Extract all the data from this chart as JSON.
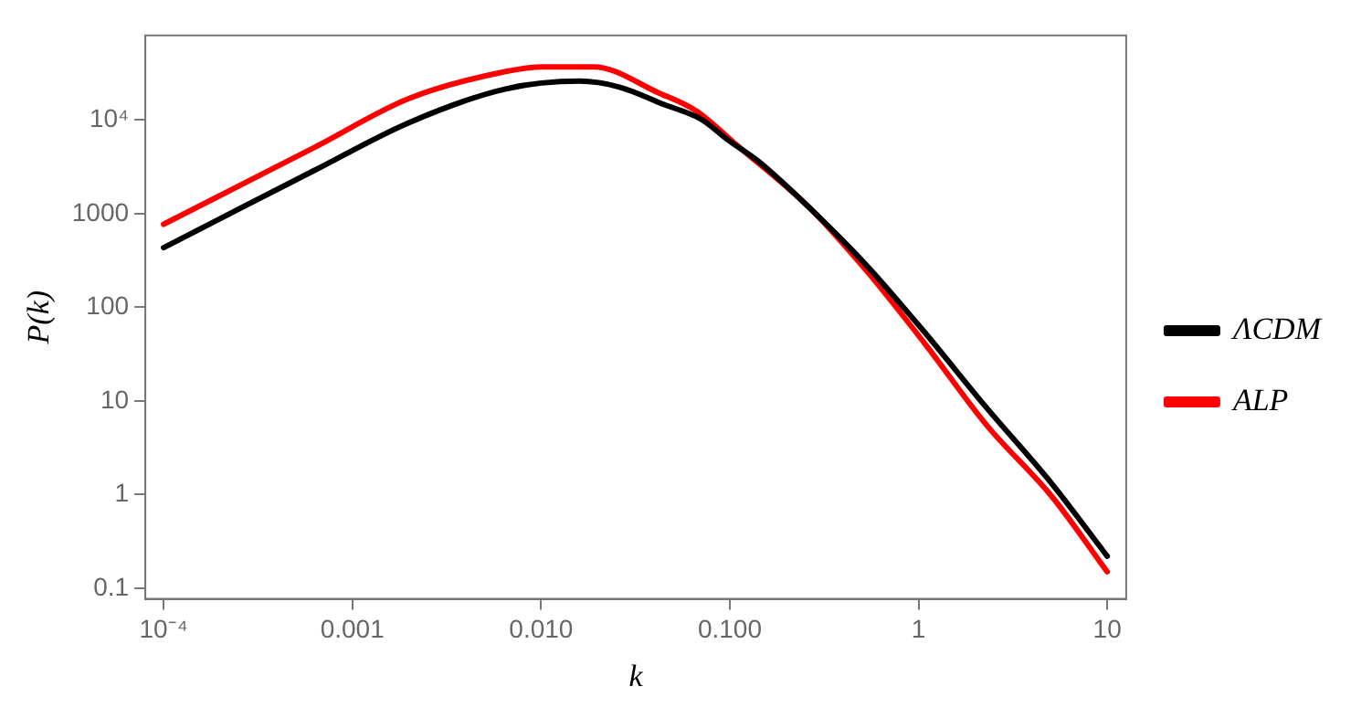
{
  "chart_data": {
    "type": "line",
    "xlabel": "k",
    "ylabel": "P(k)",
    "log": "xy",
    "legend": "right",
    "marker": "none",
    "line_style": "solid",
    "xlim": [
      8e-05,
      12.6
    ],
    "ylim": [
      0.077,
      80000
    ],
    "xticks": [
      {
        "value": 0.0001,
        "label": "10⁻⁴"
      },
      {
        "value": 0.001,
        "label": "0.001"
      },
      {
        "value": 0.01,
        "label": "0.010"
      },
      {
        "value": 0.1,
        "label": "0.100"
      },
      1,
      10
    ],
    "yticks": [
      0.1,
      1,
      10,
      100,
      1000,
      {
        "value": 10000,
        "label": "10⁴"
      }
    ],
    "series": [
      {
        "name": "ΛCDM",
        "color": "#000000",
        "x": [
          0.0001,
          0.00063,
          0.002,
          0.0065,
          0.016,
          0.026,
          0.045,
          0.071,
          0.098,
          0.14,
          0.265,
          0.54,
          1.07,
          2.3,
          5.1,
          10
        ],
        "values": [
          433,
          2900,
          9400,
          21500,
          26000,
          22500,
          14600,
          10100,
          6100,
          3700,
          1150,
          270,
          55,
          8.4,
          1.3,
          0.22
        ]
      },
      {
        "name": "ALP",
        "color": "#ff0000",
        "x": [
          0.0001,
          0.00063,
          0.002,
          0.0065,
          0.0102,
          0.019,
          0.042,
          0.066,
          0.11,
          0.265,
          0.54,
          1.07,
          2.3,
          5.1,
          10
        ],
        "values": [
          770,
          5100,
          17000,
          33000,
          37000,
          37000,
          19500,
          12600,
          5300,
          1150,
          235,
          42,
          5.5,
          0.95,
          0.15
        ]
      }
    ]
  }
}
